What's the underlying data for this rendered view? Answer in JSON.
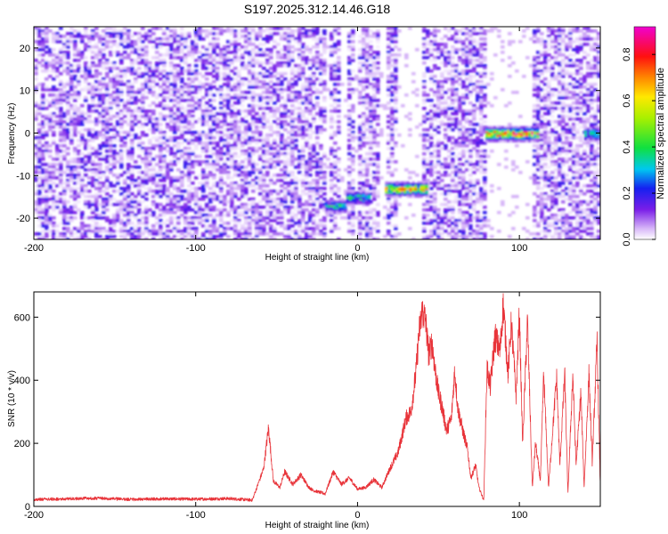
{
  "title": "S197.2025.312.14.46.G18",
  "chart_data": [
    {
      "type": "heatmap",
      "xlabel": "Height of straight line (km)",
      "ylabel": "Frequency (Hz)",
      "xlim": [
        -200,
        150
      ],
      "ylim": [
        -25,
        25
      ],
      "xticks": [
        -200,
        -100,
        0,
        100
      ],
      "yticks": [
        -20,
        -10,
        0,
        10,
        20
      ],
      "colorbar": {
        "label": "Normalized spectral amplitude",
        "range": [
          0,
          0.92
        ],
        "ticks": [
          "0.0",
          "0.2",
          "0.4",
          "0.6",
          "0.8"
        ],
        "colormap": "rainbow (white/lavender at 0 → purple → blue → cyan → green → yellow → orange → red → magenta)"
      },
      "features": [
        {
          "x_range": [
            -20,
            -8
          ],
          "frequency": -17,
          "peak_amplitude": 0.45
        },
        {
          "x_range": [
            -7,
            7
          ],
          "frequency": -15,
          "peak_amplitude": 0.5
        },
        {
          "x_range": [
            17,
            42
          ],
          "frequency": -13,
          "peak_amplitude": 0.8
        },
        {
          "x_range": [
            79,
            111
          ],
          "frequency": 0,
          "peak_amplitude": 0.92
        },
        {
          "x_range": [
            140,
            150
          ],
          "frequency": 0,
          "peak_amplitude": 0.5
        }
      ],
      "blank_x_ranges": [
        [
          -21,
          -19
        ],
        [
          -11,
          -7
        ],
        [
          -2,
          0
        ],
        [
          12,
          16
        ],
        [
          23,
          39
        ],
        [
          79,
          108
        ]
      ]
    },
    {
      "type": "line",
      "xlabel": "Height of straight line (km)",
      "ylabel": "SNR (10 * v/v)",
      "xlim": [
        -200,
        150
      ],
      "ylim": [
        0,
        680
      ],
      "xticks": [
        -200,
        -100,
        0,
        100
      ],
      "yticks": [
        0,
        200,
        400,
        600
      ],
      "color": "#e8343a",
      "x": [
        -200,
        -180,
        -160,
        -140,
        -120,
        -100,
        -80,
        -65,
        -58,
        -55,
        -52,
        -48,
        -45,
        -40,
        -35,
        -30,
        -27,
        -20,
        -15,
        -10,
        -5,
        0,
        5,
        10,
        15,
        20,
        25,
        30,
        33,
        36,
        38,
        40,
        42,
        44,
        46,
        48,
        50,
        52,
        55,
        58,
        60,
        62,
        65,
        68,
        70,
        73,
        75,
        78,
        80,
        82,
        85,
        88,
        90,
        93,
        95,
        98,
        100,
        102,
        105,
        108,
        110,
        113,
        115,
        118,
        120,
        123,
        125,
        128,
        130,
        133,
        135,
        138,
        140,
        143,
        145,
        148,
        150
      ],
      "y": [
        22,
        24,
        26,
        22,
        24,
        23,
        25,
        20,
        120,
        250,
        80,
        60,
        110,
        70,
        100,
        60,
        50,
        40,
        110,
        70,
        90,
        55,
        60,
        85,
        60,
        120,
        170,
        280,
        300,
        420,
        550,
        620,
        590,
        480,
        520,
        430,
        360,
        320,
        240,
        280,
        430,
        310,
        240,
        180,
        90,
        130,
        60,
        20,
        440,
        380,
        540,
        490,
        640,
        420,
        580,
        350,
        610,
        200,
        590,
        60,
        200,
        80,
        420,
        60,
        200,
        410,
        130,
        420,
        40,
        420,
        130,
        360,
        60,
        420,
        140,
        520,
        60
      ]
    }
  ]
}
